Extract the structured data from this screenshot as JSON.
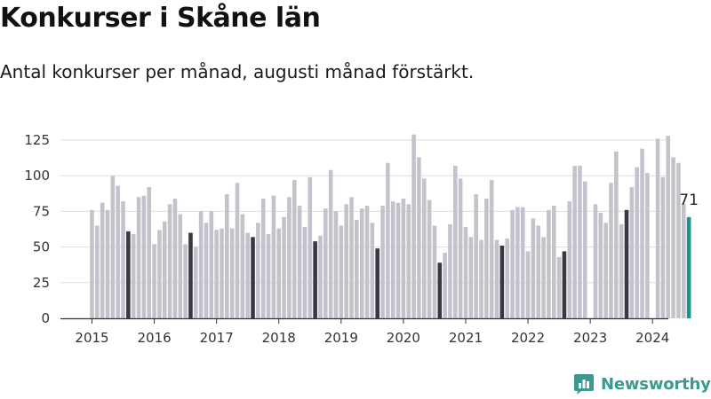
{
  "brand": {
    "name": "Newsworthy",
    "color": "#3d9890",
    "logo_icon": "newsworthy-logo-icon"
  },
  "colors": {
    "regular_bar": "#c4c3cc",
    "august_bar": "#3a3841",
    "latest_bar": "#1b958a",
    "grid": "#dddddd",
    "axis": "#333333"
  },
  "chart_data": {
    "type": "bar",
    "title": "Konkurser i Skåne län",
    "subtitle": "Antal konkurser per månad, augusti månad förstärkt.",
    "xlabel": "",
    "ylabel": "",
    "ylim": [
      0,
      130
    ],
    "yticks": [
      0,
      25,
      50,
      75,
      100,
      125
    ],
    "xtick_labels": [
      "2015",
      "2016",
      "2017",
      "2018",
      "2019",
      "2020",
      "2021",
      "2022",
      "2023",
      "2024"
    ],
    "grid": true,
    "legend": "none",
    "highlight_month": "08",
    "latest_label": "71",
    "x": [
      "2015-01",
      "2015-02",
      "2015-03",
      "2015-04",
      "2015-05",
      "2015-06",
      "2015-07",
      "2015-08",
      "2015-09",
      "2015-10",
      "2015-11",
      "2015-12",
      "2016-01",
      "2016-02",
      "2016-03",
      "2016-04",
      "2016-05",
      "2016-06",
      "2016-07",
      "2016-08",
      "2016-09",
      "2016-10",
      "2016-11",
      "2016-12",
      "2017-01",
      "2017-02",
      "2017-03",
      "2017-04",
      "2017-05",
      "2017-06",
      "2017-07",
      "2017-08",
      "2017-09",
      "2017-10",
      "2017-11",
      "2017-12",
      "2018-01",
      "2018-02",
      "2018-03",
      "2018-04",
      "2018-05",
      "2018-06",
      "2018-07",
      "2018-08",
      "2018-09",
      "2018-10",
      "2018-11",
      "2018-12",
      "2019-01",
      "2019-02",
      "2019-03",
      "2019-04",
      "2019-05",
      "2019-06",
      "2019-07",
      "2019-08",
      "2019-09",
      "2019-10",
      "2019-11",
      "2019-12",
      "2020-01",
      "2020-02",
      "2020-03",
      "2020-04",
      "2020-05",
      "2020-06",
      "2020-07",
      "2020-08",
      "2020-09",
      "2020-10",
      "2020-11",
      "2020-12",
      "2021-01",
      "2021-02",
      "2021-03",
      "2021-04",
      "2021-05",
      "2021-06",
      "2021-07",
      "2021-08",
      "2021-09",
      "2021-10",
      "2021-11",
      "2021-12",
      "2022-01",
      "2022-02",
      "2022-03",
      "2022-04",
      "2022-05",
      "2022-06",
      "2022-07",
      "2022-08",
      "2022-09",
      "2022-10",
      "2022-11",
      "2022-12",
      "2023-01",
      "2023-02",
      "2023-03",
      "2023-04",
      "2023-05",
      "2023-06",
      "2023-07",
      "2023-08",
      "2023-09",
      "2023-10",
      "2023-11",
      "2023-12",
      "2024-01",
      "2024-02",
      "2024-03",
      "2024-04",
      "2024-05",
      "2024-06",
      "2024-07",
      "2024-08"
    ],
    "values": [
      76,
      65,
      81,
      76,
      100,
      93,
      82,
      61,
      59,
      85,
      86,
      92,
      52,
      62,
      68,
      80,
      84,
      73,
      52,
      60,
      50,
      75,
      67,
      75,
      62,
      63,
      87,
      63,
      95,
      73,
      60,
      57,
      67,
      84,
      59,
      86,
      63,
      71,
      85,
      97,
      79,
      64,
      99,
      54,
      58,
      77,
      104,
      75,
      65,
      80,
      85,
      69,
      77,
      79,
      67,
      49,
      79,
      109,
      82,
      81,
      84,
      80,
      129,
      113,
      98,
      83,
      65,
      39,
      46,
      66,
      107,
      98,
      64,
      57,
      87,
      55,
      84,
      97,
      55,
      51,
      56,
      76,
      78,
      78,
      47,
      70,
      65,
      57,
      76,
      79,
      43,
      47,
      82,
      107,
      107,
      96,
      0,
      80,
      74,
      67,
      95,
      117,
      66,
      76,
      92,
      106,
      119,
      102,
      0,
      126,
      99,
      128,
      113,
      109,
      80,
      71
    ]
  }
}
